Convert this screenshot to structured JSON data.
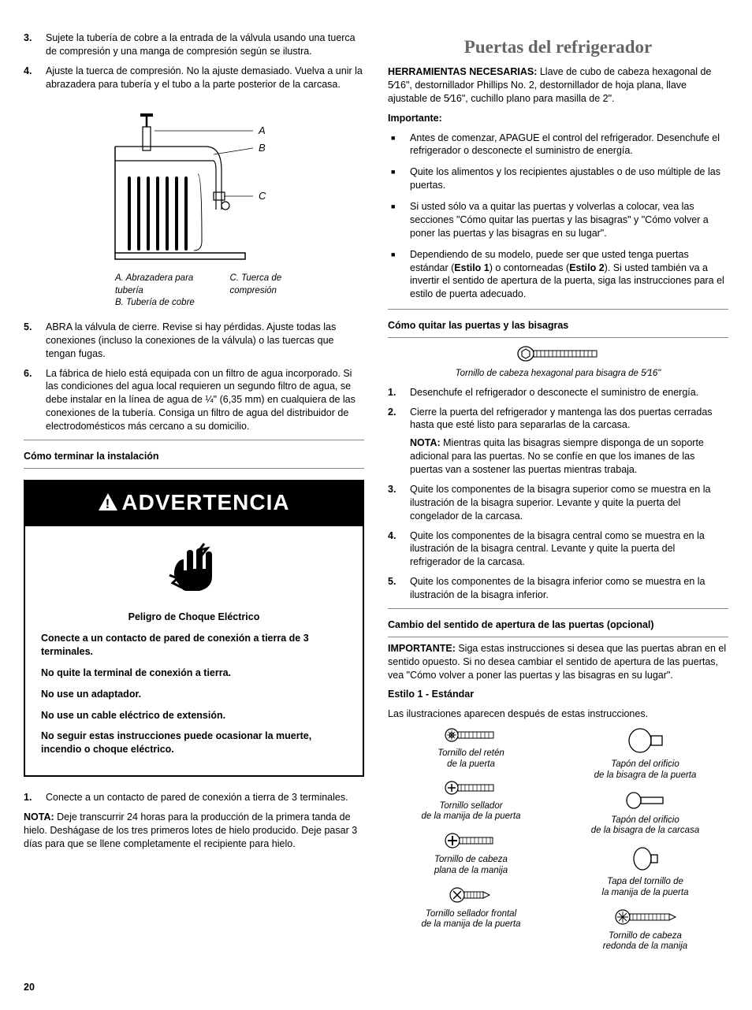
{
  "pageNumber": "20",
  "left": {
    "step3": "Sujete la tubería de cobre a la entrada de la válvula usando una tuerca de compresión y una manga de compresión según se ilustra.",
    "step4": "Ajuste la tuerca de compresión. No la ajuste demasiado. Vuelva a unir la abrazadera para tubería y el tubo a la parte posterior de la carcasa.",
    "diagLabels": {
      "A": "A",
      "B": "B",
      "C": "C"
    },
    "diagCaptionA": "A. Abrazadera para tubería",
    "diagCaptionB": "B. Tubería de cobre",
    "diagCaptionC": "C. Tuerca de compresión",
    "step5": "ABRA la válvula de cierre. Revise si hay pérdidas. Ajuste todas las conexiones (incluso la conexiones de la válvula) o las tuercas que tengan fugas.",
    "step6": "La fábrica de hielo está equipada con un filtro de agua incorporado. Si las condiciones del agua local requieren un segundo filtro de agua, se debe instalar en la línea de agua de ¼\" (6,35 mm) en cualquiera de las conexiones de la tubería. Consiga un filtro de agua del distribuidor de electrodomésticos más cercano a su domicilio.",
    "subTerminar": "Cómo terminar la instalación",
    "warnWord": "ADVERTENCIA",
    "warnHeading": "Peligro de Choque Eléctrico",
    "warnL1": "Conecte a un contacto de pared de conexión a tierra de 3 terminales.",
    "warnL2": "No quite la terminal de conexión a tierra.",
    "warnL3": "No use un adaptador.",
    "warnL4": "No use un cable eléctrico de extensión.",
    "warnL5": "No seguir estas instrucciones puede ocasionar la muerte, incendio o choque eléctrico.",
    "postWarn1": "Conecte a un contacto de pared de conexión a tierra de 3 terminales.",
    "postNotaLabel": "NOTA:",
    "postNota": " Deje transcurrir 24 horas para la producción de la primera tanda de hielo. Deshágase de los tres primeros lotes de hielo producido. Deje pasar 3 días para que se llene completamente el recipiente para hielo."
  },
  "right": {
    "title": "Puertas del refrigerador",
    "toolsLabel": "HERRAMIENTAS NECESARIAS:",
    "toolsText": " Llave de cubo de cabeza hexagonal de 5⁄16\", destornillador Phillips No. 2, destornillador de hoja plana, llave ajustable de 5⁄16\", cuchillo plano para masilla de 2\".",
    "importante": "Importante:",
    "b1": "Antes de comenzar, APAGUE el control del refrigerador. Desenchufe el refrigerador o desconecte el suministro de energía.",
    "b2": "Quite los alimentos y los recipientes ajustables o de uso múltiple de las puertas.",
    "b3_pre": "Si usted sólo va a quitar las puertas y volverlas a colocar, vea las secciones \"Cómo quitar las puertas y las bisagras\" y \"Cómo volver a poner las puertas y las bisagras en su lugar\".",
    "b4_pre": "Dependiendo de su modelo, puede ser que usted tenga puertas estándar (",
    "b4_e1": "Estilo 1",
    "b4_mid": ") o contorneadas (",
    "b4_e2": "Estilo 2",
    "b4_post": "). Si usted también va a invertir el sentido de apertura de la puerta, siga las instrucciones para el estilo de puerta adecuado.",
    "subQuitar": "Cómo quitar las puertas y las bisagras",
    "hexCaption": "Tornillo de cabeza hexagonal para bisagra de 5⁄16\"",
    "q1": "Desenchufe el refrigerador o desconecte el suministro de energía.",
    "q2": "Cierre la puerta del refrigerador y mantenga las dos puertas cerradas hasta que esté listo para separarlas de la carcasa.",
    "q2NotaLabel": "NOTA:",
    "q2Nota": " Mientras quita las bisagras siempre disponga de un soporte adicional para las puertas. No se confíe en que los imanes de las puertas van a sostener las puertas mientras trabaja.",
    "q3": "Quite los componentes de la bisagra superior como se muestra en la ilustración de la bisagra superior. Levante y quite la puerta del congelador de la carcasa.",
    "q4": "Quite los componentes de la bisagra central como se muestra en la ilustración de la bisagra central. Levante y quite la puerta del refrigerador de la carcasa.",
    "q5": "Quite los componentes de la bisagra inferior como se muestra en la ilustración de la bisagra inferior.",
    "subCambio": "Cambio del sentido de apertura de las puertas (opcional)",
    "impLabel": "IMPORTANTE:",
    "impText": " Siga estas instrucciones si desea que las puertas abran en el sentido opuesto. Si no desea cambiar el sentido de apertura de las puertas, vea \"Cómo volver a poner las puertas y las bisagras en su lugar\".",
    "estilo1": "Estilo 1 - Estándar",
    "estilo1desc": "Las ilustraciones aparecen después de estas instrucciones.",
    "hw": {
      "c1i1": "Tornillo del retén\nde la puerta",
      "c1i2": "Tornillo sellador\nde la manija de la puerta",
      "c1i3": "Tornillo de cabeza\nplana de la manija",
      "c1i4": "Tornillo sellador frontal\nde la manija de la puerta",
      "c2i1": "Tapón del orificio\nde la bisagra de la puerta",
      "c2i2": "Tapón del orificio\nde la bisagra de la carcasa",
      "c2i3": "Tapa del tornillo de\nla manija de la puerta",
      "c2i4": "Tornillo de cabeza\nredonda de la manija"
    }
  }
}
